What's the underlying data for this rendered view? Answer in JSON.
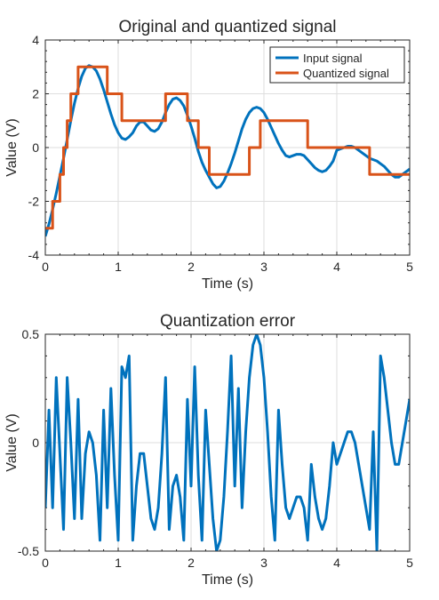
{
  "chart_data": [
    {
      "type": "line",
      "title": "Original and quantized signal",
      "xlabel": "Time (s)",
      "ylabel": "Value (V)",
      "xlim": [
        0,
        5
      ],
      "ylim": [
        -4,
        4
      ],
      "xticks": [
        "0",
        "1",
        "2",
        "3",
        "4",
        "5"
      ],
      "yticks": [
        "-4",
        "-2",
        "0",
        "2",
        "4"
      ],
      "grid": true,
      "legend": "top-right",
      "series": [
        {
          "name": "Input signal",
          "color": "#0072BD",
          "x": [
            0,
            0.05,
            0.1,
            0.15,
            0.2,
            0.25,
            0.3,
            0.35,
            0.4,
            0.45,
            0.5,
            0.55,
            0.6,
            0.65,
            0.7,
            0.75,
            0.8,
            0.85,
            0.9,
            0.95,
            1.0,
            1.05,
            1.1,
            1.15,
            1.2,
            1.25,
            1.3,
            1.35,
            1.4,
            1.45,
            1.5,
            1.55,
            1.6,
            1.65,
            1.7,
            1.75,
            1.8,
            1.85,
            1.9,
            1.95,
            2.0,
            2.05,
            2.1,
            2.15,
            2.2,
            2.25,
            2.3,
            2.35,
            2.4,
            2.45,
            2.5,
            2.55,
            2.6,
            2.65,
            2.7,
            2.75,
            2.8,
            2.85,
            2.9,
            2.95,
            3.0,
            3.05,
            3.1,
            3.15,
            3.2,
            3.25,
            3.3,
            3.35,
            3.4,
            3.45,
            3.5,
            3.55,
            3.6,
            3.65,
            3.7,
            3.75,
            3.8,
            3.85,
            3.9,
            3.95,
            4.0,
            4.05,
            4.1,
            4.15,
            4.2,
            4.25,
            4.3,
            4.35,
            4.4,
            4.45,
            4.5,
            4.55,
            4.6,
            4.65,
            4.7,
            4.75,
            4.8,
            4.85,
            4.9,
            4.95,
            5.0
          ],
          "values": [
            -3.3,
            -2.85,
            -2.3,
            -1.7,
            -1.05,
            -0.4,
            0.3,
            1.0,
            1.65,
            2.2,
            2.65,
            2.95,
            3.05,
            3.0,
            2.85,
            2.55,
            2.15,
            1.7,
            1.25,
            0.85,
            0.55,
            0.35,
            0.3,
            0.4,
            0.55,
            0.8,
            0.95,
            0.95,
            0.8,
            0.65,
            0.6,
            0.7,
            0.95,
            1.3,
            1.6,
            1.8,
            1.85,
            1.75,
            1.55,
            1.2,
            0.8,
            0.35,
            -0.15,
            -0.55,
            -0.85,
            -1.1,
            -1.35,
            -1.5,
            -1.45,
            -1.25,
            -0.95,
            -0.6,
            -0.2,
            0.25,
            0.7,
            1.05,
            1.3,
            1.45,
            1.5,
            1.45,
            1.3,
            1.05,
            0.75,
            0.45,
            0.15,
            -0.1,
            -0.3,
            -0.35,
            -0.3,
            -0.25,
            -0.25,
            -0.3,
            -0.45,
            -0.6,
            -0.75,
            -0.85,
            -0.9,
            -0.85,
            -0.7,
            -0.5,
            -0.1,
            -0.05,
            0.0,
            0.05,
            0.05,
            0.0,
            -0.1,
            -0.2,
            -0.3,
            -0.4,
            -0.45,
            -0.5,
            -0.6,
            -0.7,
            -0.85,
            -1.0,
            -1.1,
            -1.1,
            -1.0,
            -0.9,
            -0.8
          ]
        },
        {
          "name": "Quantized signal",
          "color": "#D95319",
          "step": true,
          "x": [
            0,
            0.1,
            0.2,
            0.25,
            0.3,
            0.35,
            0.45,
            0.55,
            0.85,
            1.05,
            1.65,
            1.95,
            2.1,
            2.25,
            2.8,
            2.95,
            3.6,
            4.45,
            5.0
          ],
          "values": [
            -3,
            -2,
            -1,
            0,
            1,
            2,
            3,
            3,
            2,
            1,
            2,
            1,
            0,
            -1,
            0,
            1,
            0,
            -1,
            -1
          ]
        }
      ]
    },
    {
      "type": "line",
      "title": "Quantization error",
      "xlabel": "Time (s)",
      "ylabel": "Value (V)",
      "xlim": [
        0,
        5
      ],
      "ylim": [
        -0.5,
        0.5
      ],
      "xticks": [
        "0",
        "1",
        "2",
        "3",
        "4",
        "5"
      ],
      "yticks": [
        "-0.5",
        "0",
        "0.5"
      ],
      "grid": true,
      "series": [
        {
          "color": "#0072BD",
          "x": [
            0,
            0.05,
            0.1,
            0.15,
            0.2,
            0.25,
            0.3,
            0.35,
            0.4,
            0.45,
            0.5,
            0.55,
            0.6,
            0.65,
            0.7,
            0.75,
            0.8,
            0.85,
            0.9,
            0.95,
            1.0,
            1.05,
            1.1,
            1.15,
            1.2,
            1.25,
            1.3,
            1.35,
            1.4,
            1.45,
            1.5,
            1.55,
            1.6,
            1.65,
            1.7,
            1.75,
            1.8,
            1.85,
            1.9,
            1.95,
            2.0,
            2.05,
            2.1,
            2.15,
            2.2,
            2.25,
            2.3,
            2.35,
            2.4,
            2.45,
            2.5,
            2.55,
            2.6,
            2.65,
            2.7,
            2.75,
            2.8,
            2.85,
            2.9,
            2.95,
            3.0,
            3.05,
            3.1,
            3.15,
            3.2,
            3.25,
            3.3,
            3.35,
            3.4,
            3.45,
            3.5,
            3.55,
            3.6,
            3.65,
            3.7,
            3.75,
            3.8,
            3.85,
            3.9,
            3.95,
            4.0,
            4.05,
            4.1,
            4.15,
            4.2,
            4.25,
            4.3,
            4.35,
            4.4,
            4.45,
            4.5,
            4.55,
            4.6,
            4.65,
            4.7,
            4.75,
            4.8,
            4.85,
            4.9,
            4.95,
            5.0
          ],
          "values": [
            -0.3,
            0.15,
            -0.3,
            0.3,
            -0.05,
            -0.4,
            0.3,
            0.0,
            -0.35,
            0.2,
            -0.35,
            -0.05,
            0.05,
            0.0,
            -0.15,
            -0.45,
            0.15,
            -0.3,
            0.25,
            -0.15,
            -0.45,
            0.35,
            0.3,
            0.4,
            -0.45,
            -0.2,
            -0.05,
            -0.05,
            -0.2,
            -0.35,
            -0.4,
            -0.3,
            -0.05,
            0.3,
            -0.4,
            -0.2,
            -0.15,
            -0.25,
            -0.45,
            0.2,
            -0.2,
            0.35,
            -0.15,
            -0.45,
            0.15,
            -0.1,
            -0.35,
            -0.5,
            -0.45,
            -0.25,
            0.05,
            0.4,
            -0.2,
            0.25,
            -0.3,
            0.05,
            0.3,
            0.45,
            0.5,
            0.45,
            0.3,
            0.05,
            -0.25,
            -0.45,
            0.15,
            -0.1,
            -0.3,
            -0.35,
            -0.3,
            -0.25,
            -0.25,
            -0.3,
            -0.45,
            -0.1,
            -0.25,
            -0.35,
            -0.4,
            -0.35,
            -0.2,
            0.0,
            -0.1,
            -0.05,
            0.0,
            0.05,
            0.05,
            0.0,
            -0.1,
            -0.2,
            -0.3,
            -0.4,
            0.05,
            -0.5,
            0.4,
            0.3,
            0.15,
            0.0,
            -0.1,
            -0.1,
            0.0,
            0.1,
            0.2
          ]
        }
      ]
    }
  ]
}
